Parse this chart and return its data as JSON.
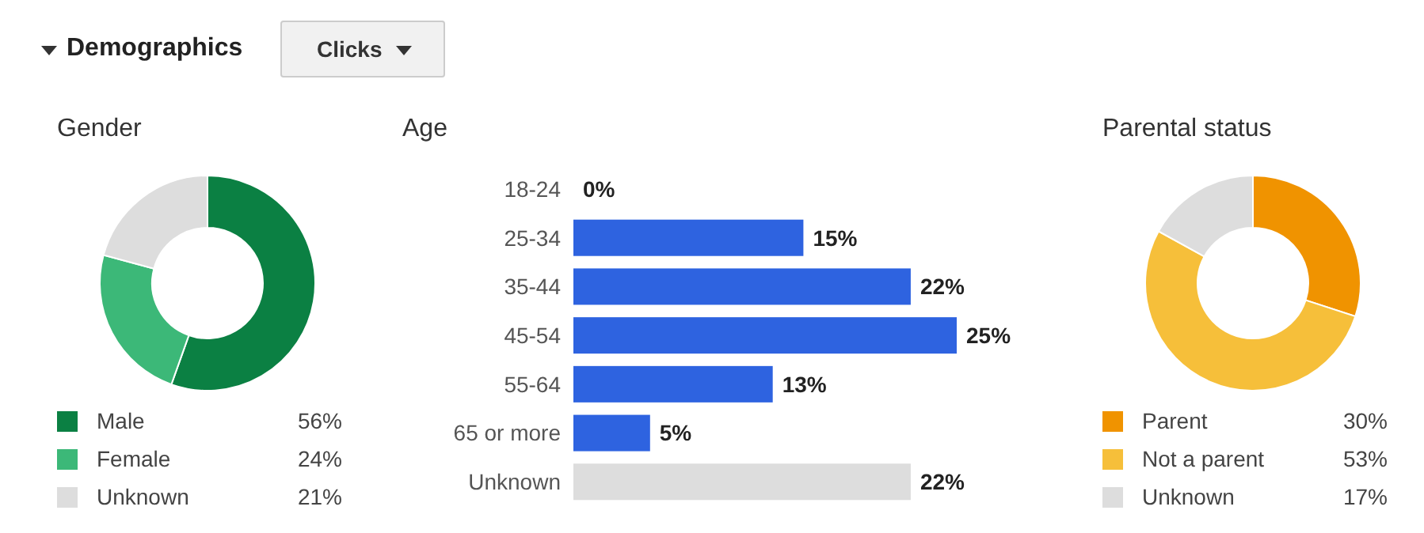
{
  "chart_data": [
    {
      "type": "other",
      "title": "Demographics",
      "annotations": [
        "Clicks"
      ]
    },
    {
      "type": "donut",
      "title": "Gender",
      "categories": [
        "Male",
        "Female",
        "Unknown"
      ],
      "values": [
        56,
        24,
        21
      ],
      "colors": [
        "#0b8043",
        "#3cb878",
        "#dddddd"
      ],
      "value_labels": [
        "56%",
        "24%",
        "21%"
      ],
      "legend": "bottom"
    },
    {
      "type": "bar",
      "orientation": "horizontal",
      "title": "Age",
      "categories": [
        "18-24",
        "25-34",
        "35-44",
        "45-54",
        "55-64",
        "65 or more",
        "Unknown"
      ],
      "values": [
        0,
        15,
        22,
        25,
        13,
        5,
        22
      ],
      "colors": [
        "#2e63e0",
        "#2e63e0",
        "#2e63e0",
        "#2e63e0",
        "#2e63e0",
        "#2e63e0",
        "#dddddd"
      ],
      "value_labels": [
        "0%",
        "15%",
        "22%",
        "25%",
        "13%",
        "5%",
        "22%"
      ]
    },
    {
      "type": "donut",
      "title": "Parental status",
      "categories": [
        "Parent",
        "Not a parent",
        "Unknown"
      ],
      "values": [
        30,
        53,
        17
      ],
      "colors": [
        "#f09300",
        "#f6bf3a",
        "#dddddd"
      ],
      "value_labels": [
        "30%",
        "53%",
        "17%"
      ],
      "legend": "bottom"
    }
  ]
}
